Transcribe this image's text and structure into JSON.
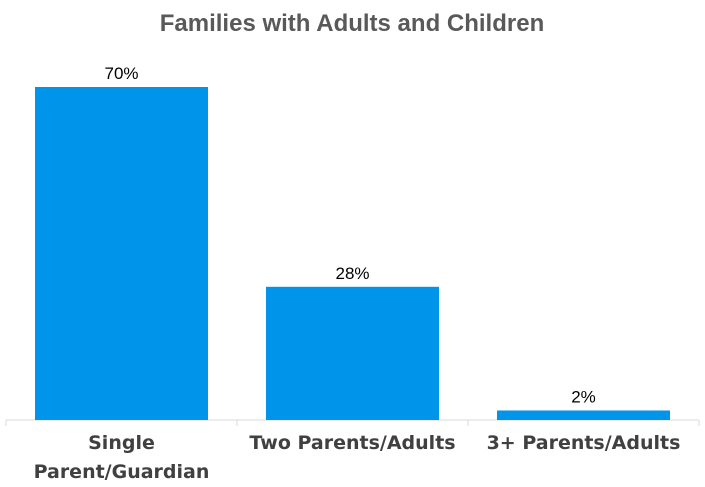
{
  "chart_data": {
    "type": "bar",
    "title": "Families with Adults and Children",
    "categories": [
      "Single Parent/Guardian",
      "Two Parents/Adults",
      "3+ Parents/Adults"
    ],
    "category_lines": [
      [
        "Single",
        "Parent/Guardian"
      ],
      [
        "Two Parents/Adults"
      ],
      [
        "3+ Parents/Adults"
      ]
    ],
    "values": [
      70,
      28,
      2
    ],
    "data_labels": [
      "70%",
      "28%",
      "2%"
    ],
    "xlabel": "",
    "ylabel": "",
    "ylim": [
      0,
      70
    ],
    "grid": false,
    "legend": "none",
    "bar_color": "#0095ea"
  }
}
